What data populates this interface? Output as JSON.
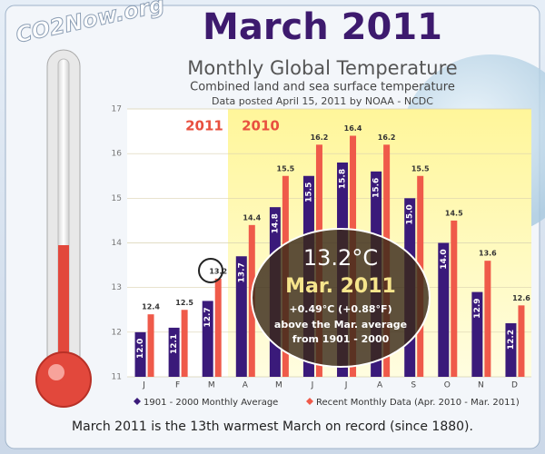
{
  "logo": "CO2Now.org",
  "chart_data": {
    "type": "bar",
    "title": "March 2011",
    "subtitle": "Monthly Global Temperature",
    "description": "Combined land and sea surface temperature",
    "source": "Data posted April 15, 2011 by NOAA - NCDC",
    "year_labels": [
      "2011",
      "2010"
    ],
    "callout": {
      "value": "13.2°C",
      "period": "Mar. 2011",
      "anomaly": "+0.49°C (+0.88°F)",
      "line1": "above the Mar. average",
      "line2": "from 1901 - 2000"
    },
    "footer": "March 2011 is the 13th warmest March on record (since 1880).",
    "categories": [
      "J",
      "F",
      "M",
      "A",
      "M",
      "J",
      "J",
      "A",
      "S",
      "O",
      "N",
      "D"
    ],
    "series": [
      {
        "name": "1901 - 2000 Monthly Average",
        "color": "#3a1a7a",
        "values": [
          12.0,
          12.1,
          12.7,
          13.7,
          14.8,
          15.5,
          15.8,
          15.6,
          15.0,
          14.0,
          12.9,
          12.2
        ],
        "value_labels": [
          "12.0",
          "12.1",
          "12.7",
          "13.7",
          "14.8",
          "15.5",
          "15.8",
          "15.6",
          "15.0",
          "14.0",
          "12.9",
          "12.2"
        ]
      },
      {
        "name": "Recent Monthly Data (Apr. 2010 - Mar. 2011)",
        "color": "#ef5a4a",
        "values": [
          12.4,
          12.5,
          13.2,
          14.4,
          15.5,
          16.2,
          16.4,
          16.2,
          15.5,
          14.5,
          13.6,
          12.6
        ],
        "value_labels": [
          "12.4",
          "12.5",
          "13.2",
          "14.4",
          "15.5",
          "16.2",
          "16.4",
          "16.2",
          "15.5",
          "14.5",
          "13.6",
          "12.6"
        ]
      }
    ],
    "ylim": [
      11,
      17
    ],
    "yticks": [
      11,
      12,
      13,
      14,
      15,
      16,
      17
    ],
    "grid": true
  }
}
